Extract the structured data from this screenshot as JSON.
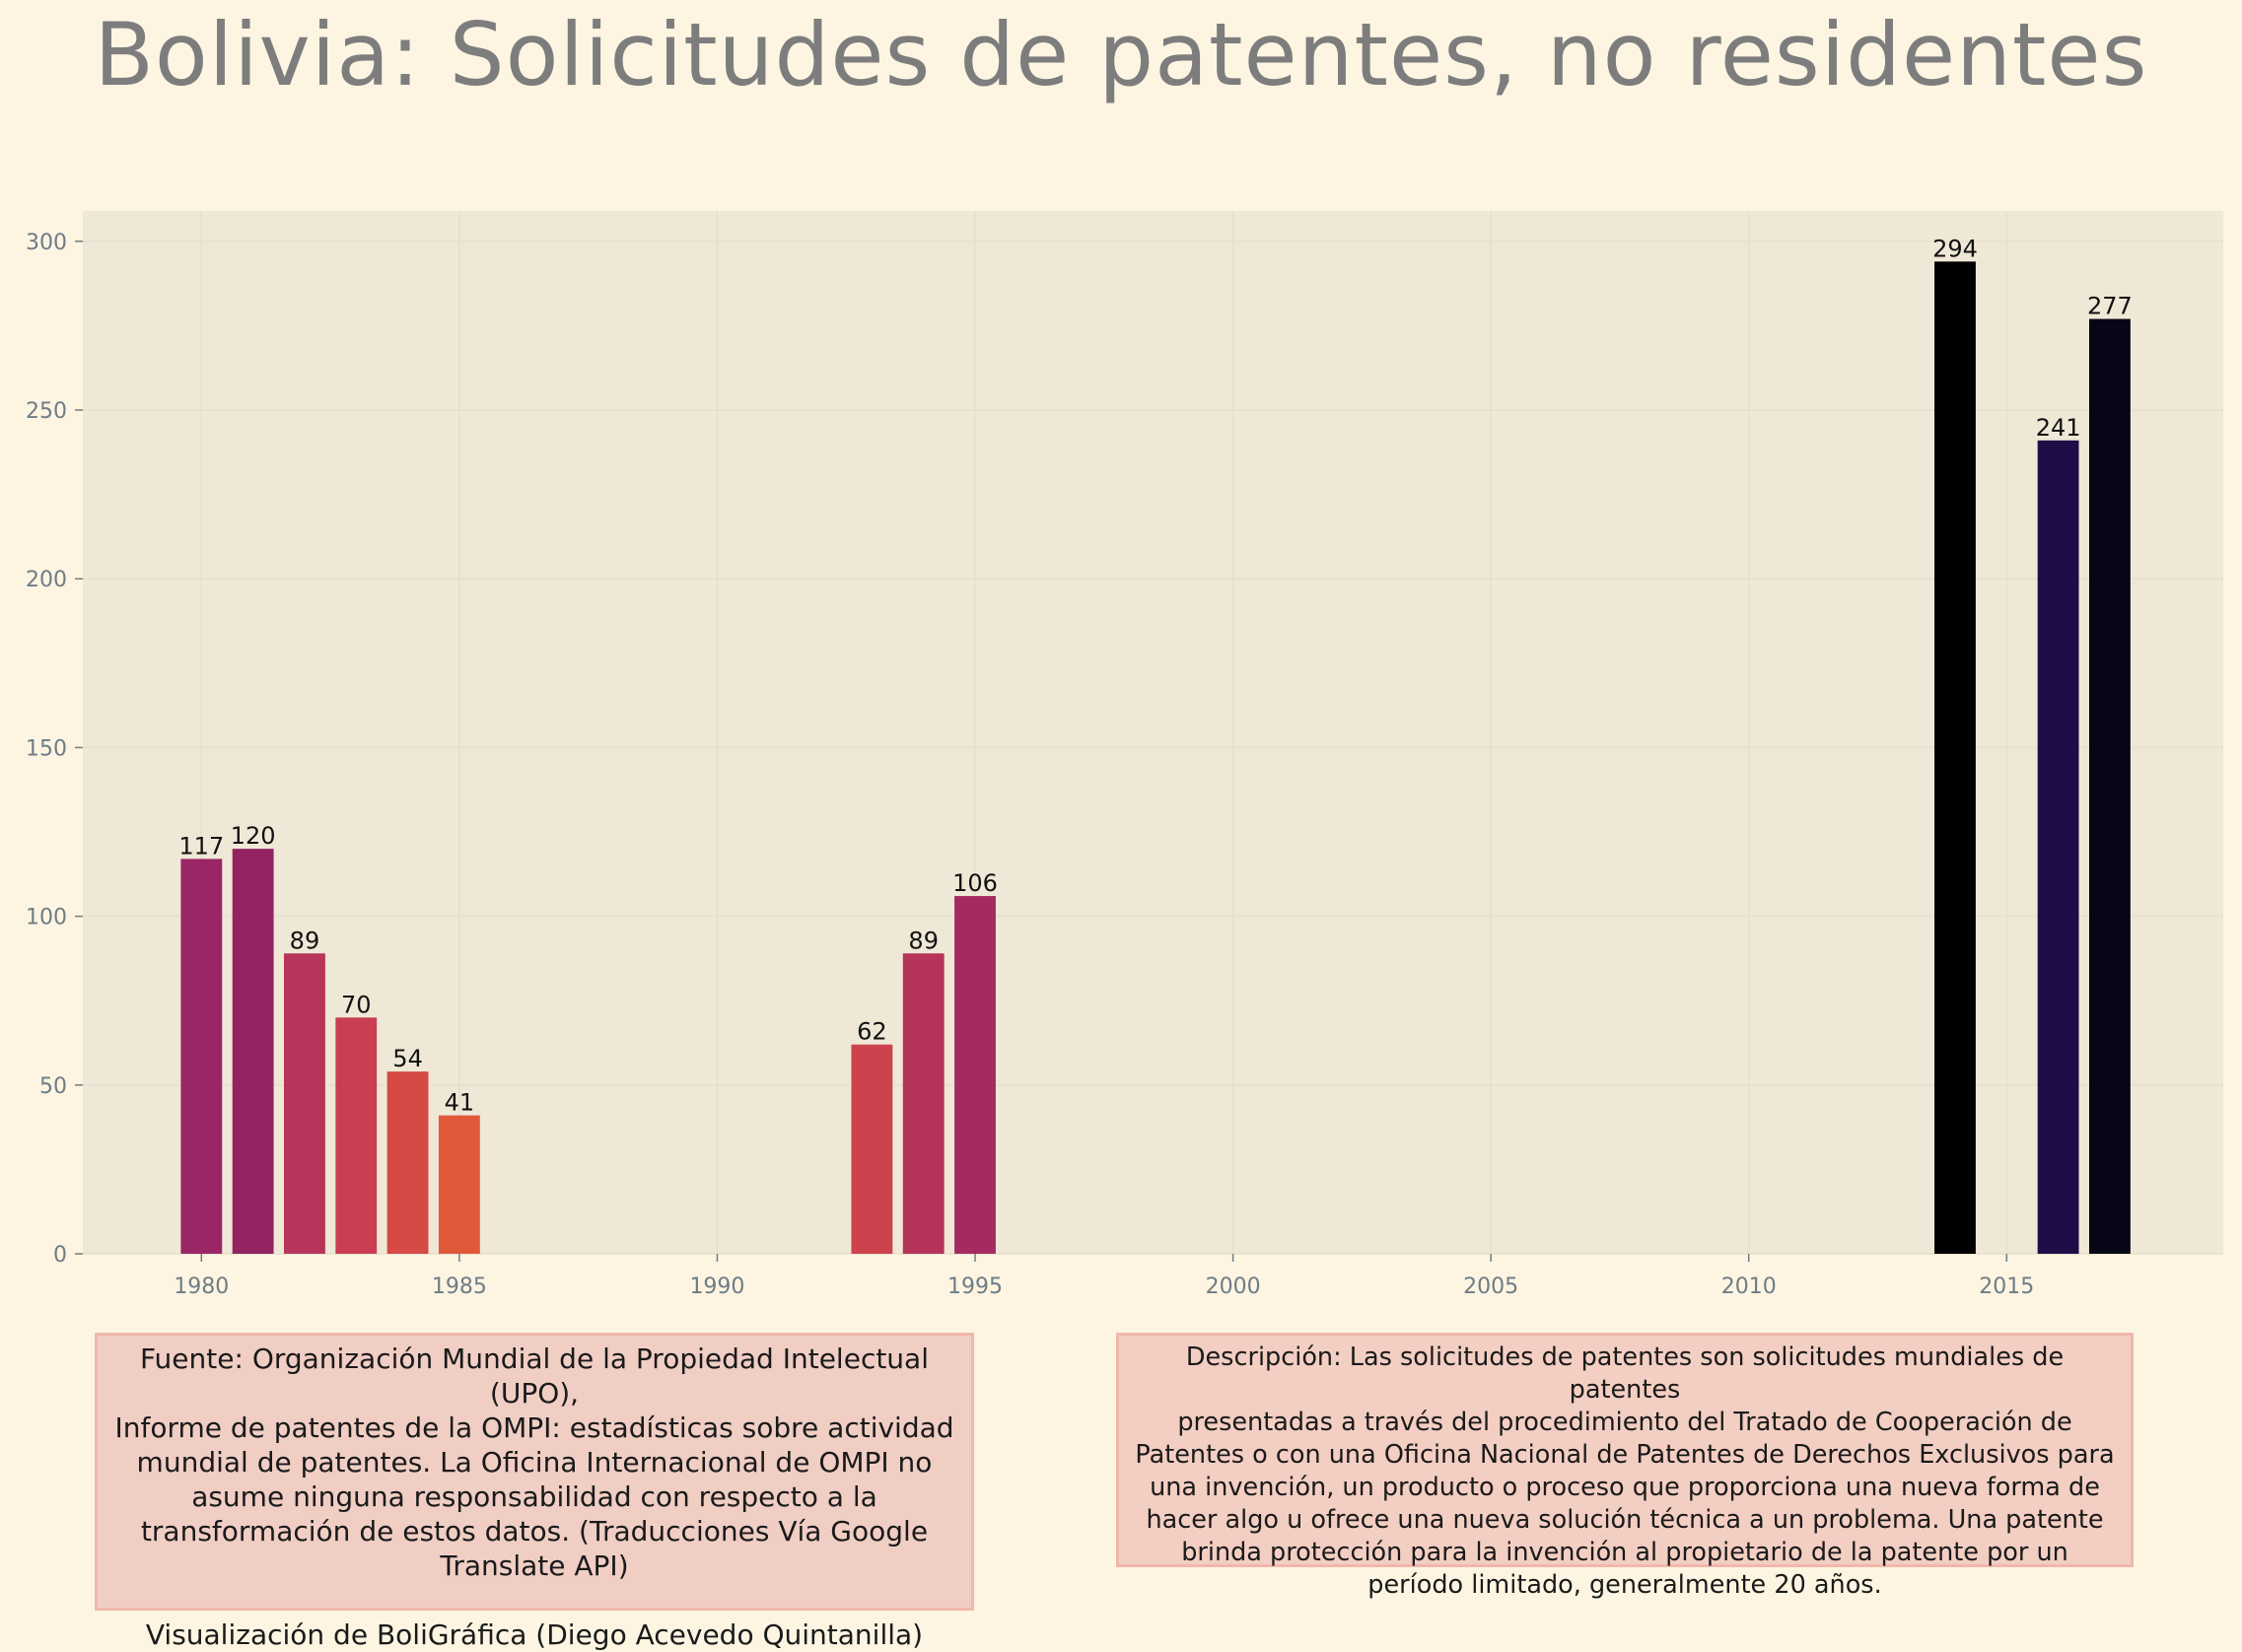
{
  "chart_data": {
    "type": "bar",
    "title": "Bolivia:  Solicitudes de patentes, no residentes",
    "xlabel": "",
    "ylabel": "",
    "x": [
      1980,
      1981,
      1982,
      1983,
      1984,
      1985,
      1993,
      1994,
      1995,
      2014,
      2016,
      2017
    ],
    "values": [
      117,
      120,
      89,
      70,
      54,
      41,
      62,
      89,
      106,
      294,
      241,
      277
    ],
    "colors": [
      "#9a2665",
      "#922462",
      "#b7345a",
      "#c93e52",
      "#d54a45",
      "#e05a3a",
      "#cd434d",
      "#b6335a",
      "#a52a60",
      "#000000",
      "#200d48",
      "#070616"
    ],
    "xlim": [
      1977.7,
      2019.2
    ],
    "ylim": [
      0,
      309
    ],
    "x_ticks": [
      1980,
      1985,
      1990,
      1995,
      2000,
      2005,
      2010,
      2015
    ],
    "y_ticks": [
      0,
      50,
      100,
      150,
      200,
      250,
      300
    ],
    "grid": true,
    "legend": "none",
    "plot_background": "#efe8d6"
  },
  "footer": {
    "source_lines": [
      "Fuente: Organización Mundial de la Propiedad Intelectual (UPO),",
      "Informe de patentes de la OMPI: estadísticas sobre actividad",
      "mundial de patentes. La Oficina Internacional de OMPI no",
      "asume ninguna responsabilidad con respecto a la",
      "transformación de estos datos. (Traducciones Vía Google",
      "Translate API)"
    ],
    "credit": "Visualización de BoliGráfica (Diego Acevedo Quintanilla)",
    "description_lines": [
      "Descripción: Las solicitudes de patentes son solicitudes mundiales de patentes",
      "presentadas a través del procedimiento del Tratado de Cooperación de",
      "Patentes o con una Oficina Nacional de Patentes de Derechos Exclusivos para",
      "una invención, un producto o proceso que proporciona una nueva forma de",
      "hacer algo u ofrece una nueva solución técnica a un problema. Una patente",
      "brinda protección para la invención al propietario de la patente por un",
      "período limitado, generalmente 20 años."
    ]
  }
}
